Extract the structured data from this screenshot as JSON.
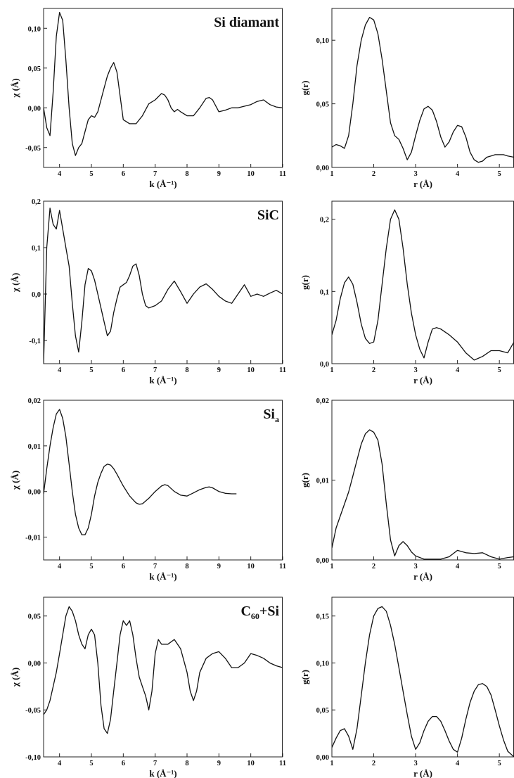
{
  "figure": {
    "rows": [
      {
        "title": "Si diamant",
        "title_sub": "",
        "left_ylabel": "χ (Å)",
        "right_ylabel": "g(r)"
      },
      {
        "title": "SiC",
        "title_sub": "",
        "left_ylabel": "χ (Å)",
        "right_ylabel": "g(r)"
      },
      {
        "title": "Si",
        "title_sub": "a",
        "left_ylabel": "χ (Å)",
        "right_ylabel": "g(r)"
      },
      {
        "title": "C",
        "title_sub": "60",
        "title_suffix": "+Si",
        "left_ylabel": "χ (Å)",
        "right_ylabel": "g(r)"
      }
    ],
    "left_xlabel": "k (Å⁻¹)",
    "right_xlabel": "r (Å)"
  },
  "chart_data": [
    {
      "type": "line",
      "panel": "Si diamant chi(k)",
      "title": "Si diamant",
      "xlabel": "k (Å⁻¹)",
      "ylabel": "χ (Å)",
      "xlim": [
        3.5,
        11
      ],
      "ylim": [
        -0.075,
        0.125
      ],
      "xticks": [
        4,
        5,
        6,
        7,
        8,
        9,
        10,
        11
      ],
      "xtick_labels": [
        "4",
        "5",
        "6",
        "7",
        "8",
        "9",
        "10",
        "11"
      ],
      "yticks": [
        -0.05,
        0.0,
        0.05,
        0.1
      ],
      "ytick_labels": [
        "-0,05",
        "0,00",
        "0,05",
        "0,10"
      ],
      "x": [
        3.5,
        3.6,
        3.7,
        3.8,
        3.9,
        4.0,
        4.1,
        4.2,
        4.3,
        4.4,
        4.5,
        4.6,
        4.7,
        4.8,
        4.9,
        5.0,
        5.1,
        5.2,
        5.3,
        5.4,
        5.5,
        5.6,
        5.7,
        5.8,
        5.9,
        6.0,
        6.2,
        6.4,
        6.6,
        6.8,
        7.0,
        7.2,
        7.3,
        7.4,
        7.5,
        7.6,
        7.7,
        7.8,
        8.0,
        8.2,
        8.4,
        8.6,
        8.7,
        8.8,
        9.0,
        9.2,
        9.4,
        9.6,
        9.8,
        10.0,
        10.2,
        10.4,
        10.6,
        10.8,
        11.0
      ],
      "y": [
        0.0,
        -0.025,
        -0.035,
        0.02,
        0.09,
        0.12,
        0.11,
        0.06,
        0.0,
        -0.045,
        -0.06,
        -0.05,
        -0.045,
        -0.03,
        -0.015,
        -0.01,
        -0.012,
        -0.005,
        0.01,
        0.025,
        0.04,
        0.05,
        0.057,
        0.045,
        0.015,
        -0.015,
        -0.02,
        -0.02,
        -0.01,
        0.005,
        0.01,
        0.018,
        0.016,
        0.01,
        0.0,
        -0.005,
        -0.002,
        -0.005,
        -0.01,
        -0.01,
        0.0,
        0.012,
        0.013,
        0.01,
        -0.005,
        -0.003,
        0.0,
        0.0,
        0.002,
        0.004,
        0.008,
        0.01,
        0.004,
        0.001,
        0.0
      ]
    },
    {
      "type": "line",
      "panel": "Si diamant g(r)",
      "xlabel": "r (Å)",
      "ylabel": "g(r)",
      "xlim": [
        1,
        5.35
      ],
      "ylim": [
        0,
        0.125
      ],
      "xticks": [
        1,
        2,
        3,
        4,
        5
      ],
      "xtick_labels": [
        "1",
        "2",
        "3",
        "4",
        "5"
      ],
      "yticks": [
        0.0,
        0.05,
        0.1
      ],
      "ytick_labels": [
        "0,00",
        "0,05",
        "0,10"
      ],
      "x": [
        1.0,
        1.1,
        1.2,
        1.3,
        1.4,
        1.5,
        1.6,
        1.7,
        1.8,
        1.9,
        2.0,
        2.1,
        2.2,
        2.3,
        2.4,
        2.5,
        2.6,
        2.7,
        2.8,
        2.9,
        3.0,
        3.1,
        3.2,
        3.3,
        3.4,
        3.5,
        3.6,
        3.7,
        3.8,
        3.9,
        4.0,
        4.1,
        4.2,
        4.3,
        4.4,
        4.5,
        4.6,
        4.7,
        4.8,
        4.9,
        5.0,
        5.1,
        5.2,
        5.35
      ],
      "y": [
        0.016,
        0.018,
        0.017,
        0.015,
        0.025,
        0.05,
        0.08,
        0.1,
        0.112,
        0.118,
        0.116,
        0.105,
        0.085,
        0.06,
        0.035,
        0.025,
        0.022,
        0.015,
        0.006,
        0.012,
        0.025,
        0.037,
        0.046,
        0.048,
        0.045,
        0.036,
        0.024,
        0.016,
        0.02,
        0.028,
        0.033,
        0.032,
        0.024,
        0.012,
        0.006,
        0.004,
        0.005,
        0.008,
        0.009,
        0.01,
        0.01,
        0.01,
        0.009,
        0.008
      ]
    },
    {
      "type": "line",
      "panel": "SiC chi(k)",
      "title": "SiC",
      "xlabel": "k (Å⁻¹)",
      "ylabel": "χ (Å)",
      "xlim": [
        3.5,
        11
      ],
      "ylim": [
        -0.15,
        0.2
      ],
      "xticks": [
        4,
        5,
        6,
        7,
        8,
        9,
        10,
        11
      ],
      "xtick_labels": [
        "4",
        "5",
        "6",
        "7",
        "8",
        "9",
        "10",
        "11"
      ],
      "yticks": [
        -0.1,
        0.0,
        0.1,
        0.2
      ],
      "ytick_labels": [
        "-0,1",
        "0,0",
        "0,1",
        "0,2"
      ],
      "x": [
        3.5,
        3.6,
        3.7,
        3.8,
        3.9,
        4.0,
        4.1,
        4.2,
        4.3,
        4.4,
        4.5,
        4.6,
        4.7,
        4.8,
        4.9,
        5.0,
        5.1,
        5.2,
        5.3,
        5.4,
        5.5,
        5.6,
        5.7,
        5.8,
        5.9,
        6.0,
        6.1,
        6.2,
        6.3,
        6.4,
        6.5,
        6.6,
        6.7,
        6.8,
        7.0,
        7.2,
        7.4,
        7.6,
        7.8,
        8.0,
        8.2,
        8.4,
        8.6,
        8.8,
        9.0,
        9.2,
        9.4,
        9.6,
        9.8,
        10.0,
        10.2,
        10.4,
        10.6,
        10.8,
        11.0
      ],
      "y": [
        -0.15,
        0.1,
        0.185,
        0.15,
        0.14,
        0.18,
        0.14,
        0.1,
        0.06,
        -0.02,
        -0.09,
        -0.125,
        -0.06,
        0.02,
        0.055,
        0.05,
        0.03,
        0.0,
        -0.03,
        -0.06,
        -0.09,
        -0.08,
        -0.04,
        -0.01,
        0.015,
        0.02,
        0.025,
        0.04,
        0.06,
        0.065,
        0.04,
        0.0,
        -0.025,
        -0.03,
        -0.025,
        -0.015,
        0.01,
        0.028,
        0.005,
        -0.02,
        0.0,
        0.015,
        0.022,
        0.01,
        -0.005,
        -0.015,
        -0.02,
        0.0,
        0.02,
        -0.005,
        0.0,
        -0.005,
        0.002,
        0.008,
        0.0
      ]
    },
    {
      "type": "line",
      "panel": "SiC g(r)",
      "xlabel": "r (Å)",
      "ylabel": "g(r)",
      "xlim": [
        1,
        5.35
      ],
      "ylim": [
        0,
        0.225
      ],
      "xticks": [
        1,
        2,
        3,
        4,
        5
      ],
      "xtick_labels": [
        "1",
        "2",
        "3",
        "4",
        "5"
      ],
      "yticks": [
        0.0,
        0.1,
        0.2
      ],
      "ytick_labels": [
        "0,0",
        "0,1",
        "0,2"
      ],
      "x": [
        1.0,
        1.1,
        1.2,
        1.3,
        1.4,
        1.5,
        1.6,
        1.7,
        1.8,
        1.9,
        2.0,
        2.1,
        2.2,
        2.3,
        2.4,
        2.5,
        2.6,
        2.7,
        2.8,
        2.9,
        3.0,
        3.1,
        3.2,
        3.3,
        3.4,
        3.5,
        3.6,
        3.8,
        4.0,
        4.2,
        4.4,
        4.6,
        4.8,
        5.0,
        5.2,
        5.35
      ],
      "y": [
        0.04,
        0.06,
        0.09,
        0.112,
        0.12,
        0.11,
        0.085,
        0.055,
        0.035,
        0.028,
        0.03,
        0.06,
        0.11,
        0.16,
        0.2,
        0.213,
        0.2,
        0.16,
        0.11,
        0.07,
        0.04,
        0.02,
        0.008,
        0.03,
        0.048,
        0.05,
        0.048,
        0.04,
        0.03,
        0.015,
        0.005,
        0.01,
        0.018,
        0.018,
        0.015,
        0.03
      ]
    },
    {
      "type": "line",
      "panel": "Si_a chi(k)",
      "title": "Si_a",
      "xlabel": "k (Å⁻¹)",
      "ylabel": "χ (Å)",
      "xlim": [
        3.5,
        11
      ],
      "ylim": [
        -0.015,
        0.02
      ],
      "xticks": [
        4,
        5,
        6,
        7,
        8,
        9,
        10,
        11
      ],
      "xtick_labels": [
        "4",
        "5",
        "6",
        "7",
        "8",
        "9",
        "10",
        "11"
      ],
      "yticks": [
        -0.01,
        0.0,
        0.01,
        0.02
      ],
      "ytick_labels": [
        "-0,01",
        "0,00",
        "0,01",
        "0,02"
      ],
      "x": [
        3.5,
        3.6,
        3.7,
        3.8,
        3.9,
        4.0,
        4.1,
        4.2,
        4.3,
        4.4,
        4.5,
        4.6,
        4.7,
        4.8,
        4.9,
        5.0,
        5.1,
        5.2,
        5.3,
        5.4,
        5.5,
        5.6,
        5.7,
        5.8,
        5.9,
        6.0,
        6.2,
        6.4,
        6.5,
        6.6,
        6.8,
        7.0,
        7.2,
        7.3,
        7.4,
        7.6,
        7.8,
        8.0,
        8.2,
        8.4,
        8.6,
        8.7,
        8.8,
        9.0,
        9.2,
        9.4,
        9.55
      ],
      "y": [
        -0.0005,
        0.005,
        0.01,
        0.014,
        0.017,
        0.018,
        0.016,
        0.012,
        0.006,
        0.0,
        -0.005,
        -0.008,
        -0.0095,
        -0.0095,
        -0.008,
        -0.005,
        -0.001,
        0.002,
        0.004,
        0.0055,
        0.006,
        0.0058,
        0.005,
        0.0038,
        0.0025,
        0.0012,
        -0.001,
        -0.0025,
        -0.0028,
        -0.0027,
        -0.0015,
        0.0,
        0.0012,
        0.0015,
        0.0013,
        0.0,
        -0.0008,
        -0.001,
        -0.0003,
        0.0004,
        0.0009,
        0.001,
        0.0008,
        0.0,
        -0.0004,
        -0.0005,
        -0.0005
      ]
    },
    {
      "type": "line",
      "panel": "Si_a g(r)",
      "xlabel": "r (Å)",
      "ylabel": "g(r)",
      "xlim": [
        1,
        5.35
      ],
      "ylim": [
        0,
        0.02
      ],
      "xticks": [
        1,
        2,
        3,
        4,
        5
      ],
      "xtick_labels": [
        "1",
        "2",
        "3",
        "4",
        "5"
      ],
      "yticks": [
        0.0,
        0.01,
        0.02
      ],
      "ytick_labels": [
        "0,00",
        "0,01",
        "0,02"
      ],
      "x": [
        1.0,
        1.1,
        1.2,
        1.3,
        1.4,
        1.5,
        1.6,
        1.7,
        1.8,
        1.9,
        2.0,
        2.1,
        2.2,
        2.3,
        2.4,
        2.5,
        2.6,
        2.7,
        2.8,
        2.9,
        3.0,
        3.2,
        3.4,
        3.6,
        3.8,
        4.0,
        4.2,
        4.4,
        4.6,
        4.8,
        5.0,
        5.2,
        5.35
      ],
      "y": [
        0.0015,
        0.004,
        0.0055,
        0.007,
        0.0085,
        0.0105,
        0.0125,
        0.0145,
        0.0158,
        0.0163,
        0.016,
        0.015,
        0.012,
        0.007,
        0.0025,
        0.0005,
        0.0018,
        0.0023,
        0.0018,
        0.001,
        0.0005,
        0.0001,
        0.0001,
        0.0001,
        0.0004,
        0.0012,
        0.0009,
        0.0008,
        0.0009,
        0.0004,
        0.0001,
        0.0003,
        0.0004
      ]
    },
    {
      "type": "line",
      "panel": "C60+Si chi(k)",
      "title": "C60+Si",
      "xlabel": "k (Å⁻¹)",
      "ylabel": "χ (Å)",
      "xlim": [
        3.5,
        11
      ],
      "ylim": [
        -0.1,
        0.07
      ],
      "xticks": [
        4,
        5,
        6,
        7,
        8,
        9,
        10,
        11
      ],
      "xtick_labels": [
        "4",
        "5",
        "6",
        "7",
        "8",
        "9",
        "10",
        "11"
      ],
      "yticks": [
        -0.1,
        -0.05,
        0.0,
        0.05
      ],
      "ytick_labels": [
        "-0,10",
        "-0,05",
        "0,00",
        "0,05"
      ],
      "x": [
        3.5,
        3.6,
        3.7,
        3.8,
        3.9,
        4.0,
        4.1,
        4.2,
        4.3,
        4.4,
        4.5,
        4.6,
        4.7,
        4.8,
        4.9,
        5.0,
        5.1,
        5.2,
        5.3,
        5.4,
        5.5,
        5.6,
        5.7,
        5.8,
        5.9,
        6.0,
        6.1,
        6.2,
        6.3,
        6.4,
        6.5,
        6.6,
        6.7,
        6.8,
        6.9,
        7.0,
        7.1,
        7.2,
        7.4,
        7.6,
        7.8,
        8.0,
        8.1,
        8.2,
        8.3,
        8.4,
        8.6,
        8.8,
        9.0,
        9.2,
        9.4,
        9.6,
        9.8,
        10.0,
        10.2,
        10.4,
        10.6,
        10.8,
        11.0
      ],
      "y": [
        -0.055,
        -0.05,
        -0.04,
        -0.025,
        -0.01,
        0.01,
        0.03,
        0.05,
        0.06,
        0.055,
        0.045,
        0.03,
        0.02,
        0.015,
        0.03,
        0.036,
        0.03,
        0.0,
        -0.045,
        -0.07,
        -0.075,
        -0.06,
        -0.03,
        0.0,
        0.03,
        0.045,
        0.04,
        0.045,
        0.03,
        0.005,
        -0.015,
        -0.025,
        -0.035,
        -0.05,
        -0.03,
        0.01,
        0.025,
        0.02,
        0.02,
        0.025,
        0.015,
        -0.01,
        -0.03,
        -0.04,
        -0.03,
        -0.01,
        0.005,
        0.01,
        0.012,
        0.005,
        -0.005,
        -0.005,
        0.0,
        0.01,
        0.008,
        0.005,
        0.0,
        -0.003,
        -0.005
      ]
    },
    {
      "type": "line",
      "panel": "C60+Si g(r)",
      "xlabel": "r (Å)",
      "ylabel": "g(r)",
      "xlim": [
        1,
        5.35
      ],
      "ylim": [
        0,
        0.17
      ],
      "xticks": [
        1,
        2,
        3,
        4,
        5
      ],
      "xtick_labels": [
        "1",
        "2",
        "3",
        "4",
        "5"
      ],
      "yticks": [
        0.0,
        0.05,
        0.1,
        0.15
      ],
      "ytick_labels": [
        "0,00",
        "0,05",
        "0,10",
        "0,15"
      ],
      "x": [
        1.0,
        1.1,
        1.2,
        1.3,
        1.4,
        1.5,
        1.6,
        1.7,
        1.8,
        1.9,
        2.0,
        2.1,
        2.2,
        2.3,
        2.4,
        2.5,
        2.6,
        2.7,
        2.8,
        2.9,
        3.0,
        3.1,
        3.2,
        3.3,
        3.4,
        3.5,
        3.6,
        3.7,
        3.8,
        3.9,
        4.0,
        4.1,
        4.2,
        4.3,
        4.4,
        4.5,
        4.6,
        4.7,
        4.8,
        4.9,
        5.0,
        5.1,
        5.2,
        5.35
      ],
      "y": [
        0.01,
        0.02,
        0.028,
        0.03,
        0.022,
        0.008,
        0.03,
        0.065,
        0.1,
        0.13,
        0.15,
        0.158,
        0.16,
        0.155,
        0.14,
        0.12,
        0.095,
        0.07,
        0.045,
        0.022,
        0.008,
        0.015,
        0.028,
        0.038,
        0.043,
        0.043,
        0.038,
        0.028,
        0.017,
        0.008,
        0.005,
        0.02,
        0.04,
        0.058,
        0.07,
        0.077,
        0.078,
        0.075,
        0.066,
        0.05,
        0.033,
        0.018,
        0.006,
        0.0
      ]
    }
  ]
}
